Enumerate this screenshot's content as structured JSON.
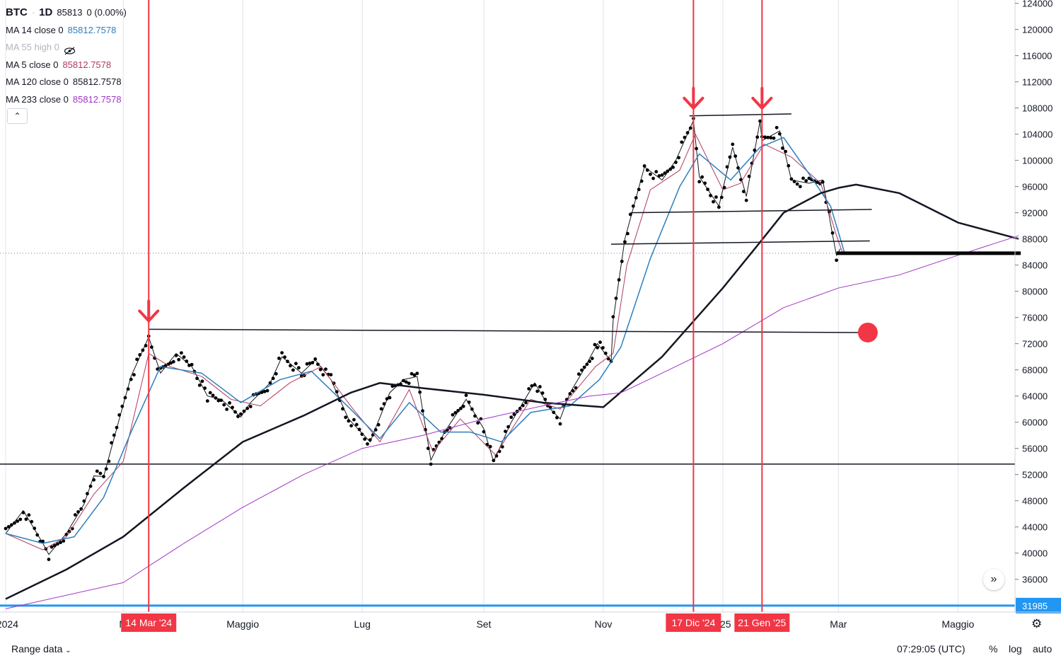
{
  "legend": {
    "symbol": "BTC",
    "interval": "1D",
    "price": "85813",
    "change": "0 (0.00%)",
    "ma_rows": [
      {
        "label": "MA 14 close 0",
        "value": "85812.7578",
        "color": "#2e7fbd",
        "hidden": false
      },
      {
        "label": "MA 55 high 0",
        "value": "",
        "color": "#b2b5be",
        "hidden": true
      },
      {
        "label": "MA 5 close 0",
        "value": "85812.7578",
        "color": "#b03b5e",
        "hidden": false
      },
      {
        "label": "MA 120 close 0",
        "value": "85812.7578",
        "color": "#131722",
        "hidden": false
      },
      {
        "label": "MA 233 close 0",
        "value": "85812.7578",
        "color": "#a235c6",
        "hidden": false
      }
    ],
    "collapse_icon": "chevron-up-icon"
  },
  "price_scale": {
    "labels": [
      "124000",
      "120000",
      "116000",
      "112000",
      "108000",
      "104000",
      "100000",
      "96000",
      "92000",
      "88000",
      "84000",
      "80000",
      "76000",
      "72000",
      "68000",
      "64000",
      "60000",
      "56000",
      "52000",
      "48000",
      "44000",
      "40000",
      "36000"
    ],
    "highlight_label": "31985",
    "highlight_color": "#2196f3"
  },
  "time_axis": {
    "labels": [
      "2024",
      "M",
      "Maggio",
      "Lug",
      "Set",
      "Nov",
      "025",
      "Mar",
      "Maggio"
    ],
    "markers": [
      {
        "label": "14 Mar '24",
        "color": "#f23645"
      },
      {
        "label": "17 Dic '24",
        "color": "#f23645"
      },
      {
        "label": "21 Gen '25",
        "color": "#f23645"
      }
    ]
  },
  "bottom_bar": {
    "range_label": "Range data",
    "clock": "07:29:05 (UTC)",
    "percent": "%",
    "log": "log",
    "auto": "auto"
  },
  "icons": {
    "scroll": "double-chevron-right-icon",
    "settings": "gear-icon",
    "dropdown": "chevron-down-icon",
    "eye": "eye-crossed-icon"
  },
  "chart_data": {
    "type": "line",
    "title": "BTC · 1D",
    "ylim": [
      31000,
      124500
    ],
    "x_range": [
      "2024-01-01",
      "2025-06-02"
    ],
    "grid": true,
    "series": [
      {
        "name": "BTC",
        "style": "dots",
        "dates": [
          "2024-01-01",
          "2024-01-10",
          "2024-01-20",
          "2024-01-23",
          "2024-02-01",
          "2024-02-10",
          "2024-02-15",
          "2024-02-20",
          "2024-02-28",
          "2024-03-05",
          "2024-03-14",
          "2024-03-20",
          "2024-03-28",
          "2024-04-05",
          "2024-04-13",
          "2024-04-20",
          "2024-04-30",
          "2024-05-05",
          "2024-05-15",
          "2024-05-21",
          "2024-05-31",
          "2024-06-07",
          "2024-06-15",
          "2024-06-24",
          "2024-07-05",
          "2024-07-15",
          "2024-07-22",
          "2024-07-29",
          "2024-08-05",
          "2024-08-12",
          "2024-08-23",
          "2024-09-01",
          "2024-09-06",
          "2024-09-15",
          "2024-09-27",
          "2024-10-05",
          "2024-10-10",
          "2024-10-15",
          "2024-10-21",
          "2024-10-29",
          "2024-11-05",
          "2024-11-06",
          "2024-11-12",
          "2024-11-22",
          "2024-12-01",
          "2024-12-08",
          "2024-12-17",
          "2024-12-20",
          "2024-12-30",
          "2025-01-06",
          "2025-01-13",
          "2025-01-20",
          "2025-01-21",
          "2025-01-30",
          "2025-02-05",
          "2025-02-14",
          "2025-02-21",
          "2025-02-26",
          "2025-02-28",
          "2025-03-02"
        ],
        "values": [
          43000,
          46500,
          41500,
          39800,
          43000,
          47500,
          51800,
          51700,
          60500,
          67000,
          73000,
          67500,
          70500,
          68500,
          64000,
          63500,
          60800,
          63000,
          66000,
          70000,
          67500,
          69500,
          66500,
          60500,
          57000,
          64500,
          66500,
          67000,
          54200,
          58500,
          63500,
          59000,
          54000,
          60000,
          66000,
          62000,
          60500,
          64500,
          67500,
          72000,
          69300,
          75500,
          88000,
          99000,
          97000,
          100000,
          106100,
          97500,
          93000,
          102000,
          94500,
          106000,
          103000,
          104500,
          97000,
          96500,
          97000,
          88600,
          85500,
          86500
        ]
      },
      {
        "name": "MA 5 close 0",
        "color": "#b03b5e",
        "width": 1,
        "dates": [
          "2024-01-01",
          "2024-01-20",
          "2024-02-01",
          "2024-02-15",
          "2024-03-01",
          "2024-03-14",
          "2024-03-25",
          "2024-04-10",
          "2024-04-25",
          "2024-05-10",
          "2024-05-25",
          "2024-06-10",
          "2024-06-25",
          "2024-07-10",
          "2024-07-25",
          "2024-08-06",
          "2024-08-20",
          "2024-09-07",
          "2024-09-25",
          "2024-10-10",
          "2024-10-28",
          "2024-11-06",
          "2024-11-13",
          "2024-11-25",
          "2024-12-10",
          "2024-12-18",
          "2025-01-01",
          "2025-01-10",
          "2025-01-22",
          "2025-02-05",
          "2025-02-20",
          "2025-02-28",
          "2025-03-03"
        ],
        "values": [
          43000,
          40500,
          42500,
          49000,
          54000,
          70500,
          68500,
          67000,
          63500,
          62500,
          66000,
          68500,
          62500,
          57000,
          65000,
          55500,
          60500,
          55000,
          63500,
          62000,
          68500,
          70500,
          84000,
          95500,
          98500,
          104000,
          95500,
          96500,
          102500,
          100500,
          96500,
          88500,
          86000
        ]
      },
      {
        "name": "MA 14 close 0",
        "color": "#2e7fbd",
        "width": 1.5,
        "dates": [
          "2024-01-01",
          "2024-01-20",
          "2024-02-05",
          "2024-02-20",
          "2024-03-05",
          "2024-03-20",
          "2024-04-10",
          "2024-04-30",
          "2024-05-20",
          "2024-06-05",
          "2024-06-25",
          "2024-07-10",
          "2024-07-25",
          "2024-08-10",
          "2024-08-25",
          "2024-09-10",
          "2024-09-25",
          "2024-10-15",
          "2024-10-30",
          "2024-11-10",
          "2024-11-25",
          "2024-12-10",
          "2024-12-20",
          "2025-01-05",
          "2025-01-20",
          "2025-02-01",
          "2025-02-15",
          "2025-02-25",
          "2025-03-04"
        ],
        "values": [
          43000,
          41500,
          42500,
          48500,
          58500,
          68500,
          67500,
          63000,
          66500,
          67800,
          62000,
          57500,
          63000,
          58500,
          58500,
          57000,
          61500,
          62500,
          66500,
          71500,
          85000,
          96000,
          101000,
          97000,
          102000,
          103500,
          97500,
          93000,
          86000
        ]
      },
      {
        "name": "MA 120 close 0",
        "color": "#131722",
        "width": 2.5,
        "dates": [
          "2024-01-01",
          "2024-02-01",
          "2024-03-01",
          "2024-04-01",
          "2024-05-01",
          "2024-06-01",
          "2024-06-25",
          "2024-07-10",
          "2024-08-01",
          "2024-09-01",
          "2024-10-01",
          "2024-11-01",
          "2024-12-01",
          "2025-01-01",
          "2025-01-20",
          "2025-02-01",
          "2025-02-20",
          "2025-03-01",
          "2025-03-10",
          "2025-04-01",
          "2025-05-01",
          "2025-06-01"
        ],
        "values": [
          33000,
          37500,
          42500,
          50000,
          57000,
          61000,
          64500,
          66000,
          65200,
          64200,
          63000,
          62300,
          70000,
          80500,
          87500,
          92000,
          95000,
          95800,
          96300,
          95000,
          90500,
          88000
        ]
      },
      {
        "name": "MA 233 close 0",
        "color": "#a235c6",
        "width": 1,
        "dates": [
          "2024-01-01",
          "2024-03-01",
          "2024-04-01",
          "2024-05-01",
          "2024-06-01",
          "2024-07-01",
          "2024-08-01",
          "2024-09-01",
          "2024-10-01",
          "2024-10-25",
          "2024-11-10",
          "2024-12-01",
          "2025-01-01",
          "2025-02-01",
          "2025-03-01",
          "2025-04-01",
          "2025-05-01",
          "2025-06-01"
        ],
        "values": [
          31500,
          35500,
          41500,
          47000,
          52000,
          56000,
          58000,
          60500,
          62500,
          64000,
          64500,
          67500,
          72000,
          77500,
          80500,
          82500,
          85500,
          88500
        ]
      }
    ],
    "annotations": [
      {
        "kind": "hline",
        "value": 53600,
        "color": "#131722",
        "start": "2024-01-01",
        "end": "2025-06-02"
      },
      {
        "kind": "hline",
        "value": 31985,
        "color": "#2196f3",
        "start": "2024-01-01",
        "end": "2025-06-02"
      },
      {
        "kind": "segment",
        "from": [
          "2024-03-14",
          74200
        ],
        "to": [
          "2025-03-15",
          73700
        ],
        "color": "#131722"
      },
      {
        "kind": "segment",
        "from": [
          "2024-12-15",
          106800
        ],
        "to": [
          "2025-02-05",
          107100
        ],
        "color": "#131722"
      },
      {
        "kind": "segment",
        "from": [
          "2024-11-15",
          92000
        ],
        "to": [
          "2025-03-18",
          92500
        ],
        "color": "#131722"
      },
      {
        "kind": "segment",
        "from": [
          "2024-11-05",
          87200
        ],
        "to": [
          "2025-03-17",
          87700
        ],
        "color": "#131722"
      },
      {
        "kind": "segment",
        "from": [
          "2025-02-28",
          85813
        ],
        "to": [
          "2025-06-02",
          85813
        ],
        "color": "#000000",
        "bold": true
      },
      {
        "kind": "dotted",
        "value": 85813,
        "color": "#787b86"
      },
      {
        "kind": "vline",
        "date": "2024-03-14",
        "color": "#f23645",
        "arrow_value": 77000
      },
      {
        "kind": "vline",
        "date": "2024-12-17",
        "color": "#f23645",
        "arrow_value": 109500
      },
      {
        "kind": "vline",
        "date": "2025-01-21",
        "color": "#f23645",
        "arrow_value": 109500
      },
      {
        "kind": "circle",
        "date": "2025-03-16",
        "value": 73700,
        "color": "#f23645"
      }
    ]
  }
}
